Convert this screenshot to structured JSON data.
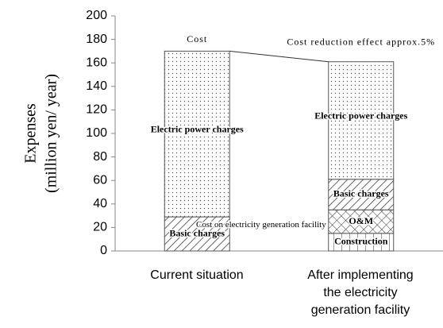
{
  "chart_data": {
    "type": "stacked_bar",
    "y_label": [
      "Expenses",
      "(million yen/ year)"
    ],
    "categories": [
      "Current situation",
      "After implementing the electricity generation facility"
    ],
    "series": [
      {
        "name": "Construction",
        "pattern": "grid",
        "values": [
          null,
          15
        ]
      },
      {
        "name": "O&M",
        "pattern": "cross",
        "values": [
          null,
          20
        ]
      },
      {
        "name": "Basic charges",
        "pattern": "hatch",
        "values": [
          29,
          26
        ]
      },
      {
        "name": "Electric power charges",
        "pattern": "dots",
        "values": [
          141,
          100
        ]
      }
    ],
    "annotations": [
      "Cost",
      "Cost reduction effect approx.5%",
      "Cost on electricity generation facility"
    ],
    "ylim": [
      0,
      200
    ],
    "yticks": [
      0,
      20,
      40,
      60,
      80,
      100,
      120,
      140,
      160,
      180,
      200
    ]
  }
}
